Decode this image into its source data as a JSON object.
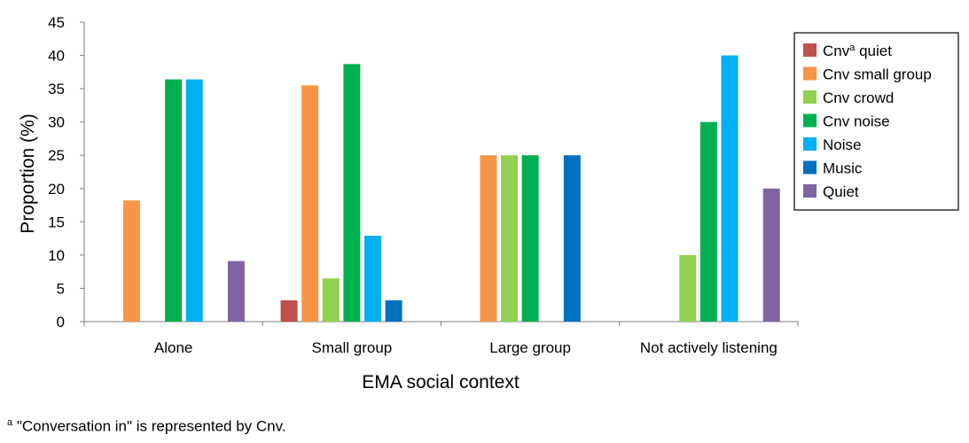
{
  "chart_data": {
    "type": "bar",
    "xlabel": "EMA social context",
    "ylabel": "Proportion (%)",
    "ylim": [
      0,
      45
    ],
    "yticks": [
      0,
      5,
      10,
      15,
      20,
      25,
      30,
      35,
      40,
      45
    ],
    "grid": false,
    "legend_position": "top-right",
    "categories": [
      "Alone",
      "Small group",
      "Large group",
      "Not actively listening"
    ],
    "series": [
      {
        "name": "Cnv quiet",
        "name_base": "Cnv",
        "name_sup": "a",
        "name_rest": " quiet",
        "color": "#c0504d",
        "values": [
          0,
          3.2,
          0,
          0
        ]
      },
      {
        "name": "Cnv small group",
        "color": "#f79646",
        "values": [
          18.2,
          35.5,
          25,
          0
        ]
      },
      {
        "name": "Cnv crowd",
        "color": "#92d050",
        "values": [
          0,
          6.5,
          25,
          10
        ]
      },
      {
        "name": "Cnv noise",
        "color": "#00b050",
        "values": [
          36.4,
          38.7,
          25,
          30
        ]
      },
      {
        "name": "Noise",
        "color": "#00b0f0",
        "values": [
          36.4,
          12.9,
          0,
          40
        ]
      },
      {
        "name": "Music",
        "color": "#0070c0",
        "values": [
          0,
          3.2,
          25,
          0
        ]
      },
      {
        "name": "Quiet",
        "color": "#8064a2",
        "values": [
          9.1,
          0,
          0,
          20
        ]
      }
    ]
  },
  "footnote": {
    "marker": "a",
    "text": " \"Conversation in\" is represented by Cnv."
  }
}
